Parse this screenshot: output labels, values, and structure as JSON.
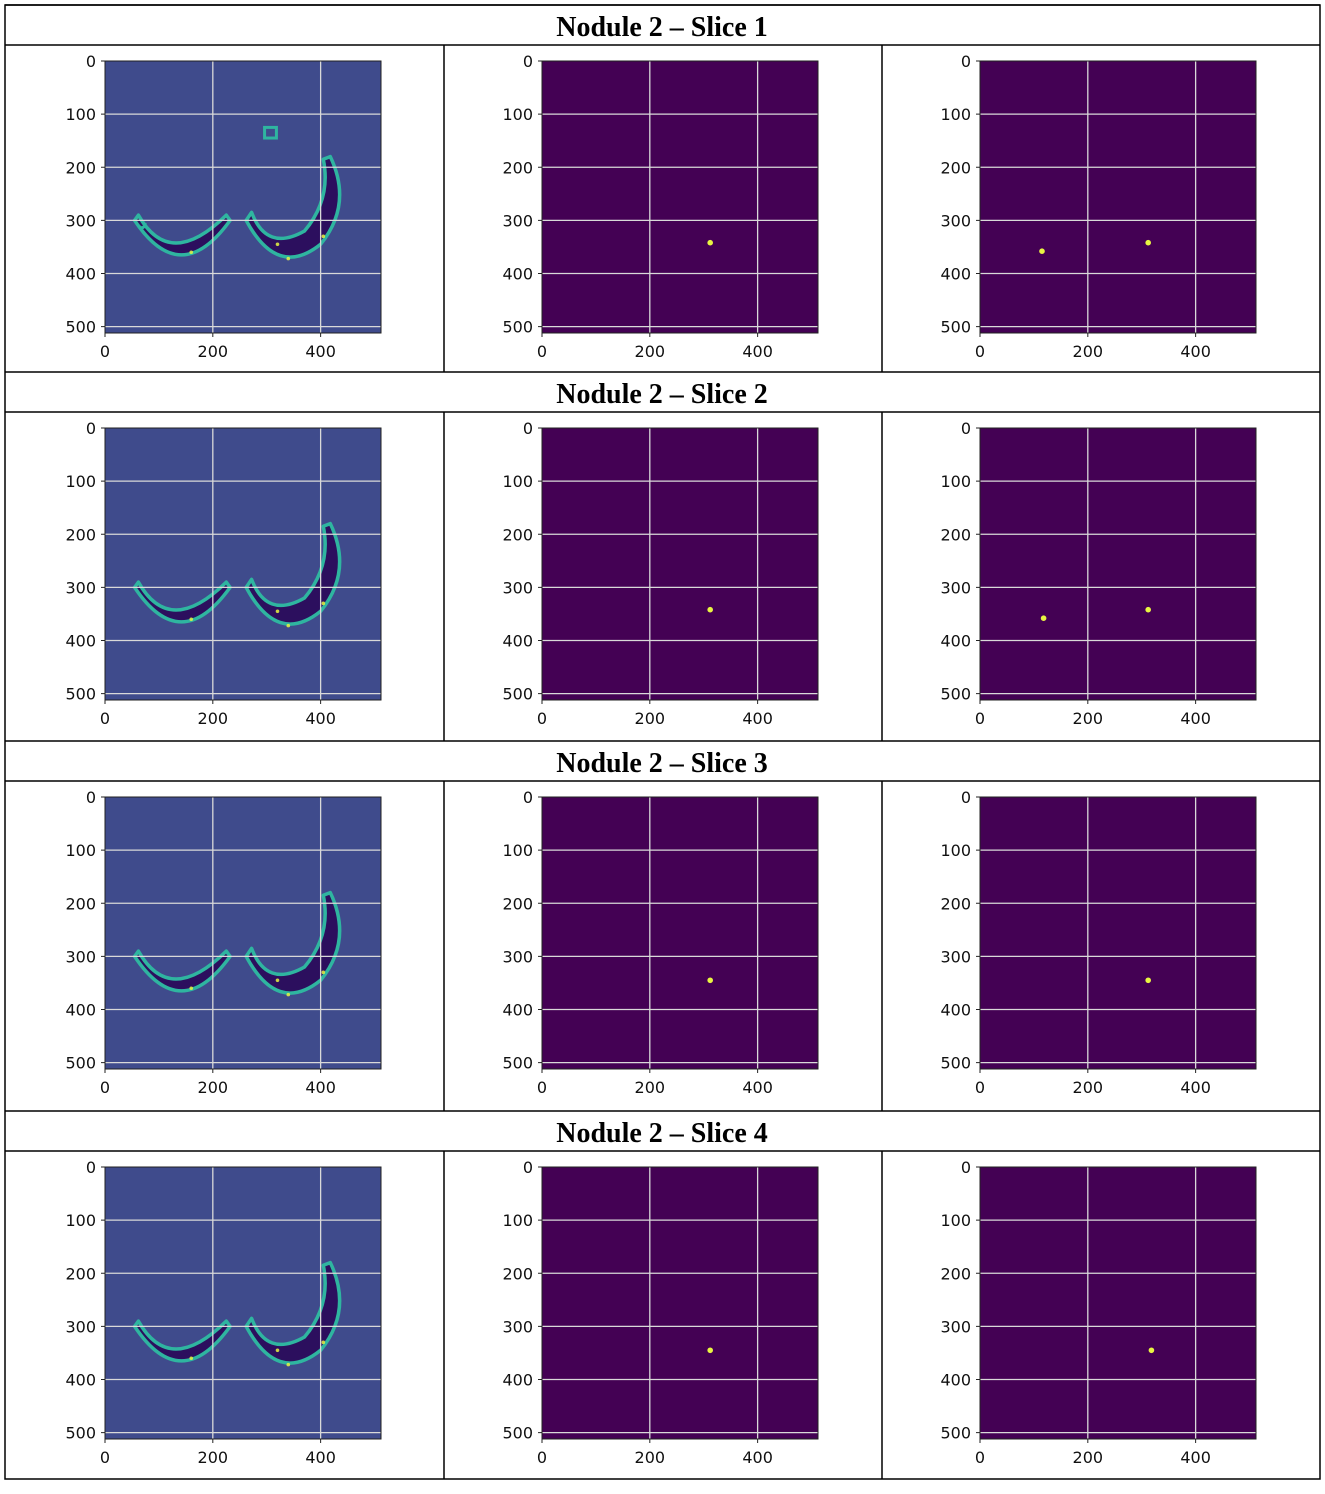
{
  "sections": [
    {
      "title": "Nodule 2 – Slice 1",
      "panels": [
        {
          "kind": "lung",
          "slice": 1
        },
        {
          "kind": "mask",
          "spots": [
            [
              312,
              342
            ]
          ]
        },
        {
          "kind": "mask",
          "spots": [
            [
              115,
              358
            ],
            [
              312,
              342
            ]
          ]
        }
      ]
    },
    {
      "title": "Nodule 2 – Slice 2",
      "panels": [
        {
          "kind": "lung",
          "slice": 2
        },
        {
          "kind": "mask",
          "spots": [
            [
              312,
              342
            ]
          ]
        },
        {
          "kind": "mask",
          "spots": [
            [
              118,
              358
            ],
            [
              312,
              342
            ]
          ]
        }
      ]
    },
    {
      "title": "Nodule 2 – Slice 3",
      "panels": [
        {
          "kind": "lung",
          "slice": 3
        },
        {
          "kind": "mask",
          "spots": [
            [
              312,
              345
            ]
          ]
        },
        {
          "kind": "mask",
          "spots": [
            [
              312,
              345
            ]
          ]
        }
      ]
    },
    {
      "title": "Nodule 2 – Slice 4",
      "panels": [
        {
          "kind": "lung",
          "slice": 4
        },
        {
          "kind": "mask",
          "spots": [
            [
              312,
              345
            ]
          ]
        },
        {
          "kind": "mask",
          "spots": [
            [
              318,
              345
            ]
          ]
        }
      ]
    }
  ],
  "axes": {
    "x_ticks": [
      0,
      200,
      400
    ],
    "y_ticks": [
      0,
      100,
      200,
      300,
      400,
      500
    ],
    "x_range": [
      0,
      512
    ],
    "y_range": [
      0,
      512
    ]
  },
  "colors": {
    "lung_bg": "#3f4b8c",
    "mask_bg": "#440154",
    "contour": "#2fb5a0",
    "lung_fill": "#2c0f5e",
    "spot": "#e8f542",
    "grid": "#d9d9d9"
  }
}
